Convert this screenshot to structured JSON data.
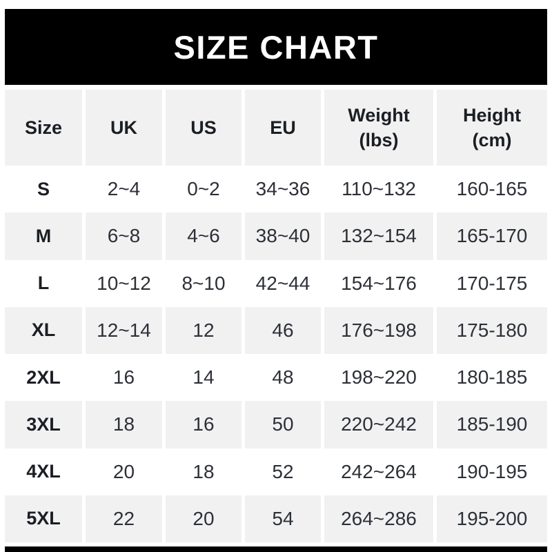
{
  "banner": {
    "title": "SIZE CHART"
  },
  "chart_data": {
    "type": "table",
    "title": "SIZE CHART",
    "columns": [
      {
        "label": "Size",
        "sub": ""
      },
      {
        "label": "UK",
        "sub": ""
      },
      {
        "label": "US",
        "sub": ""
      },
      {
        "label": "EU",
        "sub": ""
      },
      {
        "label": "Weight",
        "sub": "(lbs)"
      },
      {
        "label": "Height",
        "sub": "(cm)"
      }
    ],
    "rows": [
      {
        "size": "S",
        "uk": "2~4",
        "us": "0~2",
        "eu": "34~36",
        "weight": "110~132",
        "height": "160-165"
      },
      {
        "size": "M",
        "uk": "6~8",
        "us": "4~6",
        "eu": "38~40",
        "weight": "132~154",
        "height": "165-170"
      },
      {
        "size": "L",
        "uk": "10~12",
        "us": "8~10",
        "eu": "42~44",
        "weight": "154~176",
        "height": "170-175"
      },
      {
        "size": "XL",
        "uk": "12~14",
        "us": "12",
        "eu": "46",
        "weight": "176~198",
        "height": "175-180"
      },
      {
        "size": "2XL",
        "uk": "16",
        "us": "14",
        "eu": "48",
        "weight": "198~220",
        "height": "180-185"
      },
      {
        "size": "3XL",
        "uk": "18",
        "us": "16",
        "eu": "50",
        "weight": "220~242",
        "height": "185-190"
      },
      {
        "size": "4XL",
        "uk": "20",
        "us": "18",
        "eu": "52",
        "weight": "242~264",
        "height": "190-195"
      },
      {
        "size": "5XL",
        "uk": "22",
        "us": "20",
        "eu": "54",
        "weight": "264~286",
        "height": "195-200"
      }
    ],
    "layout": {
      "legend": "none",
      "grid": "off",
      "row_striping": "header gray; data rows alternate white then gray"
    }
  },
  "colors": {
    "banner_bg": "#000000",
    "banner_text": "#ffffff",
    "stripe": "#f1f1f2",
    "header_text": "#1b1e23",
    "cell_text": "#2d3036",
    "page_bg": "#ffffff"
  }
}
